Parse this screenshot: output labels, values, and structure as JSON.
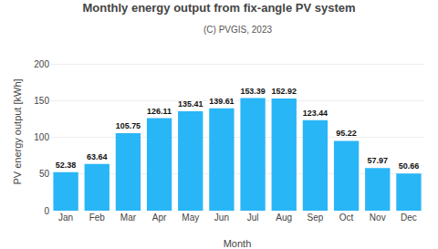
{
  "chart_data": {
    "type": "bar",
    "title": "Monthly energy output from fix-angle PV system",
    "subtitle": "(C) PVGIS, 2023",
    "xlabel": "Month",
    "ylabel": "PV energy output [kWh]",
    "categories": [
      "Jan",
      "Feb",
      "Mar",
      "Apr",
      "May",
      "Jun",
      "Jul",
      "Aug",
      "Sep",
      "Oct",
      "Nov",
      "Dec"
    ],
    "values": [
      52.38,
      63.64,
      105.75,
      126.11,
      135.41,
      139.61,
      153.39,
      152.92,
      123.44,
      95.22,
      57.97,
      50.66
    ],
    "color": "#29b6f6",
    "ylim": [
      0,
      215
    ],
    "yticks": [
      0,
      50,
      100,
      150,
      200
    ],
    "grid": true,
    "data_labels": true
  }
}
